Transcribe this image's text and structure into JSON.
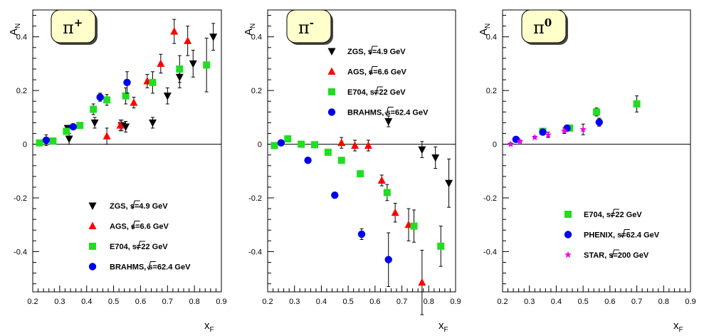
{
  "chart_data": [
    {
      "type": "scatter",
      "title": "π",
      "title_sup": "+",
      "xlabel": "x",
      "xlabel_sub": "F",
      "ylabel": "A",
      "ylabel_sub": "N",
      "xlim": [
        0.2,
        0.9
      ],
      "ylim": [
        -0.55,
        0.5
      ],
      "xticks": [
        "0.2",
        "0.3",
        "0.4",
        "0.5",
        "0.6",
        "0.7",
        "0.8",
        "0.9"
      ],
      "yticks": [
        "-0.4",
        "-0.2",
        "0",
        "0.2",
        "0.4"
      ],
      "legend_position": "bottom-right",
      "series": [
        {
          "name": "ZGS,",
          "energy": "s=4.9 GeV",
          "marker": "triangle-down",
          "color": "#000000",
          "points": [
            [
              0.33,
              0.06,
              0.01
            ],
            [
              0.335,
              0.02,
              0.02
            ],
            [
              0.43,
              0.08,
              0.02
            ],
            [
              0.53,
              0.07,
              0.02
            ],
            [
              0.545,
              0.065,
              0.02
            ],
            [
              0.645,
              0.08,
              0.02
            ],
            [
              0.7,
              0.18,
              0.03
            ],
            [
              0.745,
              0.25,
              0.04
            ],
            [
              0.795,
              0.3,
              0.05
            ],
            [
              0.87,
              0.4,
              0.05
            ]
          ]
        },
        {
          "name": "AGS,",
          "energy": "s=6.6 GeV",
          "marker": "triangle-up",
          "color": "#ff0000",
          "points": [
            [
              0.475,
              0.03,
              0.03
            ],
            [
              0.525,
              0.07,
              0.02
            ],
            [
              0.575,
              0.155,
              0.02
            ],
            [
              0.625,
              0.235,
              0.025
            ],
            [
              0.675,
              0.3,
              0.035
            ],
            [
              0.725,
              0.42,
              0.045
            ],
            [
              0.775,
              0.385,
              0.055
            ]
          ]
        },
        {
          "name": "E704,",
          "energy": "s=22 GeV",
          "marker": "square",
          "color": "#22dd22",
          "points": [
            [
              0.225,
              0.005,
              0
            ],
            [
              0.275,
              0.012,
              0
            ],
            [
              0.325,
              0.048,
              0
            ],
            [
              0.375,
              0.07,
              0
            ],
            [
              0.425,
              0.13,
              0.02
            ],
            [
              0.475,
              0.165,
              0.02
            ],
            [
              0.545,
              0.18,
              0.03
            ],
            [
              0.645,
              0.23,
              0.04
            ],
            [
              0.745,
              0.28,
              0.05
            ],
            [
              0.845,
              0.295,
              0.1
            ]
          ]
        },
        {
          "name": "BRAHMS,",
          "energy": "s=62.4 GeV",
          "marker": "circle",
          "color": "#0000ee",
          "points": [
            [
              0.25,
              0.015,
              0.02
            ],
            [
              0.35,
              0.065,
              0.01
            ],
            [
              0.45,
              0.175,
              0.015
            ],
            [
              0.55,
              0.23,
              0.04
            ]
          ]
        }
      ]
    },
    {
      "type": "scatter",
      "title": "π",
      "title_sup": "-",
      "xlabel": "x",
      "xlabel_sub": "F",
      "ylabel": "A",
      "ylabel_sub": "N",
      "xlim": [
        0.2,
        0.9
      ],
      "ylim": [
        -0.55,
        0.5
      ],
      "xticks": [
        "0.2",
        "0.3",
        "0.4",
        "0.5",
        "0.6",
        "0.7",
        "0.8",
        "0.9"
      ],
      "yticks": [
        "-0.4",
        "-0.2",
        "0",
        "0.2",
        "0.4"
      ],
      "legend_position": "top-right",
      "series": [
        {
          "name": "ZGS,",
          "energy": "s=4.9 GeV",
          "marker": "triangle-down",
          "color": "#000000",
          "points": [
            [
              0.65,
              0.085,
              0.02
            ],
            [
              0.775,
              -0.02,
              0.03
            ],
            [
              0.825,
              -0.05,
              0.04
            ],
            [
              0.875,
              -0.145,
              0.09
            ]
          ]
        },
        {
          "name": "AGS,",
          "energy": "s=6.6 GeV",
          "marker": "triangle-up",
          "color": "#ff0000",
          "points": [
            [
              0.475,
              0.005,
              0.02
            ],
            [
              0.525,
              -0.005,
              0.02
            ],
            [
              0.575,
              -0.005,
              0.02
            ],
            [
              0.625,
              -0.135,
              0.02
            ],
            [
              0.675,
              -0.255,
              0.035
            ],
            [
              0.725,
              -0.3,
              0.06
            ],
            [
              0.775,
              -0.515,
              0.12
            ]
          ]
        },
        {
          "name": "E704,",
          "energy": "s=22 GeV",
          "marker": "square",
          "color": "#22dd22",
          "points": [
            [
              0.225,
              -0.005,
              0
            ],
            [
              0.275,
              0.02,
              0
            ],
            [
              0.325,
              0.0,
              0
            ],
            [
              0.375,
              -0.002,
              0
            ],
            [
              0.425,
              -0.03,
              0
            ],
            [
              0.475,
              -0.06,
              0
            ],
            [
              0.545,
              -0.11,
              0
            ],
            [
              0.645,
              -0.18,
              0.03
            ],
            [
              0.745,
              -0.305,
              0.06
            ],
            [
              0.845,
              -0.38,
              0.075
            ]
          ]
        },
        {
          "name": "BRAHMS,",
          "energy": "s=62.4 GeV",
          "marker": "circle",
          "color": "#0000ee",
          "points": [
            [
              0.25,
              0.005,
              0.01
            ],
            [
              0.35,
              -0.06,
              0.01
            ],
            [
              0.45,
              -0.19,
              0.01
            ],
            [
              0.55,
              -0.335,
              0.02
            ],
            [
              0.65,
              -0.43,
              0.1
            ]
          ]
        }
      ]
    },
    {
      "type": "scatter",
      "title": "π",
      "title_sup": "0",
      "xlabel": "x",
      "xlabel_sub": "F",
      "ylabel": "A",
      "ylabel_sub": "N",
      "xlim": [
        0.2,
        0.9
      ],
      "ylim": [
        -0.55,
        0.5
      ],
      "xticks": [
        "0.2",
        "0.3",
        "0.4",
        "0.5",
        "0.6",
        "0.7",
        "0.8",
        "0.9"
      ],
      "yticks": [
        "-0.4",
        "-0.2",
        "0",
        "0.2",
        "0.4"
      ],
      "legend_position": "bottom-right",
      "series": [
        {
          "name": "E704,",
          "energy": "s=22 GeV",
          "marker": "square",
          "color": "#22dd22",
          "points": [
            [
              0.35,
              0.048,
              0.01
            ],
            [
              0.45,
              0.06,
              0.01
            ],
            [
              0.55,
              0.12,
              0.015
            ],
            [
              0.7,
              0.15,
              0.03
            ]
          ]
        },
        {
          "name": "PHENIX,",
          "energy": "s=62.4 GeV",
          "marker": "circle",
          "color": "#0000ee",
          "points": [
            [
              0.25,
              0.018,
              0.01
            ],
            [
              0.35,
              0.045,
              0.01
            ],
            [
              0.44,
              0.06,
              0.01
            ],
            [
              0.56,
              0.082,
              0.015
            ]
          ]
        },
        {
          "name": "STAR,",
          "energy": "s=200 GeV",
          "marker": "star",
          "color": "#ee00ee",
          "points": [
            [
              0.23,
              0.0,
              0.005
            ],
            [
              0.265,
              0.01,
              0.005
            ],
            [
              0.32,
              0.025,
              0.005
            ],
            [
              0.37,
              0.035,
              0.01
            ],
            [
              0.43,
              0.05,
              0.01
            ],
            [
              0.5,
              0.055,
              0.02
            ]
          ]
        }
      ]
    }
  ]
}
